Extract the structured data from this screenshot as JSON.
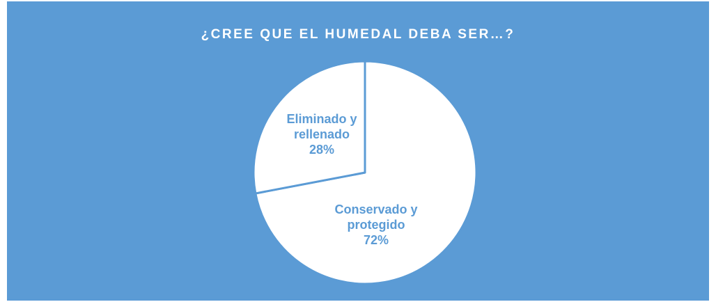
{
  "chart_data": {
    "type": "pie",
    "title": "¿CREE QUE EL HUMEDAL DEBA SER…?",
    "categories": [
      "Conservado y protegido",
      "Eliminado y rellenado"
    ],
    "values": [
      72,
      28
    ],
    "value_labels": [
      "72%",
      "28%"
    ],
    "colors": [
      "#ffffff",
      "#ffffff"
    ]
  }
}
